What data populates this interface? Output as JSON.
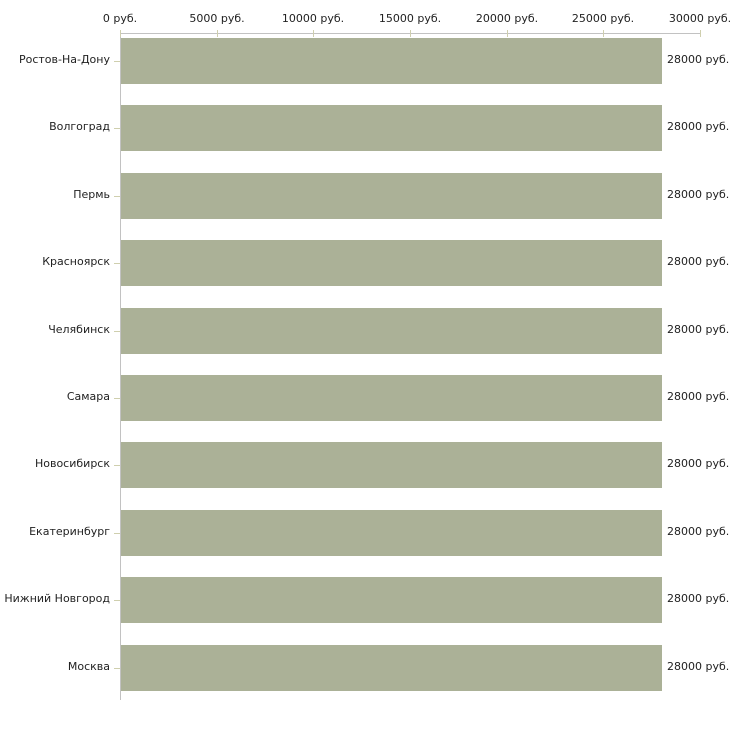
{
  "chart_data": {
    "type": "bar",
    "orientation": "horizontal",
    "title": "",
    "xlabel": "",
    "ylabel": "",
    "unit": "руб.",
    "categories": [
      "Ростов-На-Дону",
      "Волгоград",
      "Пермь",
      "Красноярск",
      "Челябинск",
      "Самара",
      "Новосибирск",
      "Екатеринбург",
      "Нижний Новгород",
      "Москва"
    ],
    "values": [
      28000,
      28000,
      28000,
      28000,
      28000,
      28000,
      28000,
      28000,
      28000,
      28000
    ],
    "value_labels": [
      "28000 руб.",
      "28000 руб.",
      "28000 руб.",
      "28000 руб.",
      "28000 руб.",
      "28000 руб.",
      "28000 руб.",
      "28000 руб.",
      "28000 руб.",
      "28000 руб."
    ],
    "x_axis": {
      "range": [
        0,
        30000
      ],
      "ticks": [
        0,
        5000,
        10000,
        15000,
        20000,
        25000,
        30000
      ],
      "tick_labels": [
        "0 руб.",
        "5000 руб.",
        "10000 руб.",
        "15000 руб.",
        "20000 руб.",
        "25000 руб.",
        "30000 руб."
      ],
      "position": "top"
    },
    "grid": false,
    "legend": false,
    "colors": {
      "bar": "#abb197",
      "axis_line": "#c2c2c2",
      "tick": "#cfcfae",
      "text": "#222222",
      "background": "#ffffff"
    }
  }
}
